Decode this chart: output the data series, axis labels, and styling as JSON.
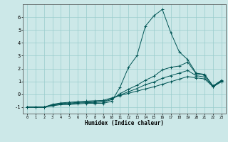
{
  "xlabel": "Humidex (Indice chaleur)",
  "bg_color": "#cce8e8",
  "grid_color": "#99cccc",
  "line_color": "#005555",
  "xlim": [
    -0.5,
    23.5
  ],
  "ylim": [
    -1.5,
    7.0
  ],
  "yticks": [
    -1,
    0,
    1,
    2,
    3,
    4,
    5,
    6
  ],
  "xticks": [
    0,
    1,
    2,
    3,
    4,
    5,
    6,
    7,
    8,
    9,
    10,
    11,
    12,
    13,
    14,
    15,
    16,
    17,
    18,
    19,
    20,
    21,
    22,
    23
  ],
  "series": [
    {
      "x": [
        0,
        1,
        2,
        3,
        4,
        5,
        6,
        7,
        8,
        9,
        10,
        11,
        12,
        13,
        14,
        15,
        16,
        17,
        18,
        19,
        20,
        21,
        22,
        23
      ],
      "y": [
        -1.0,
        -1.0,
        -1.0,
        -0.9,
        -0.8,
        -0.8,
        -0.75,
        -0.7,
        -0.7,
        -0.7,
        -0.55,
        0.55,
        2.1,
        3.0,
        5.3,
        6.1,
        6.6,
        4.8,
        3.3,
        2.7,
        1.65,
        1.55,
        0.65,
        1.1
      ]
    },
    {
      "x": [
        0,
        1,
        2,
        3,
        4,
        5,
        6,
        7,
        8,
        9,
        10,
        11,
        12,
        13,
        14,
        15,
        16,
        17,
        18,
        19,
        20,
        21,
        22,
        23
      ],
      "y": [
        -1.0,
        -1.0,
        -1.0,
        -0.85,
        -0.75,
        -0.72,
        -0.68,
        -0.65,
        -0.63,
        -0.6,
        -0.42,
        0.05,
        0.4,
        0.7,
        1.1,
        1.4,
        1.9,
        2.1,
        2.2,
        2.5,
        1.6,
        1.5,
        0.65,
        1.05
      ]
    },
    {
      "x": [
        0,
        1,
        2,
        3,
        4,
        5,
        6,
        7,
        8,
        9,
        10,
        11,
        12,
        13,
        14,
        15,
        16,
        17,
        18,
        19,
        20,
        21,
        22,
        23
      ],
      "y": [
        -1.0,
        -1.0,
        -1.0,
        -0.82,
        -0.72,
        -0.68,
        -0.63,
        -0.6,
        -0.58,
        -0.55,
        -0.35,
        -0.05,
        0.2,
        0.45,
        0.75,
        0.95,
        1.25,
        1.45,
        1.65,
        1.85,
        1.45,
        1.35,
        0.6,
        1.0
      ]
    },
    {
      "x": [
        0,
        1,
        2,
        3,
        4,
        5,
        6,
        7,
        8,
        9,
        10,
        11,
        12,
        13,
        14,
        15,
        16,
        17,
        18,
        19,
        20,
        21,
        22,
        23
      ],
      "y": [
        -1.0,
        -1.0,
        -1.0,
        -0.78,
        -0.67,
        -0.62,
        -0.57,
        -0.53,
        -0.5,
        -0.47,
        -0.28,
        -0.1,
        0.08,
        0.25,
        0.42,
        0.58,
        0.78,
        0.98,
        1.18,
        1.38,
        1.28,
        1.2,
        0.58,
        0.98
      ]
    }
  ]
}
